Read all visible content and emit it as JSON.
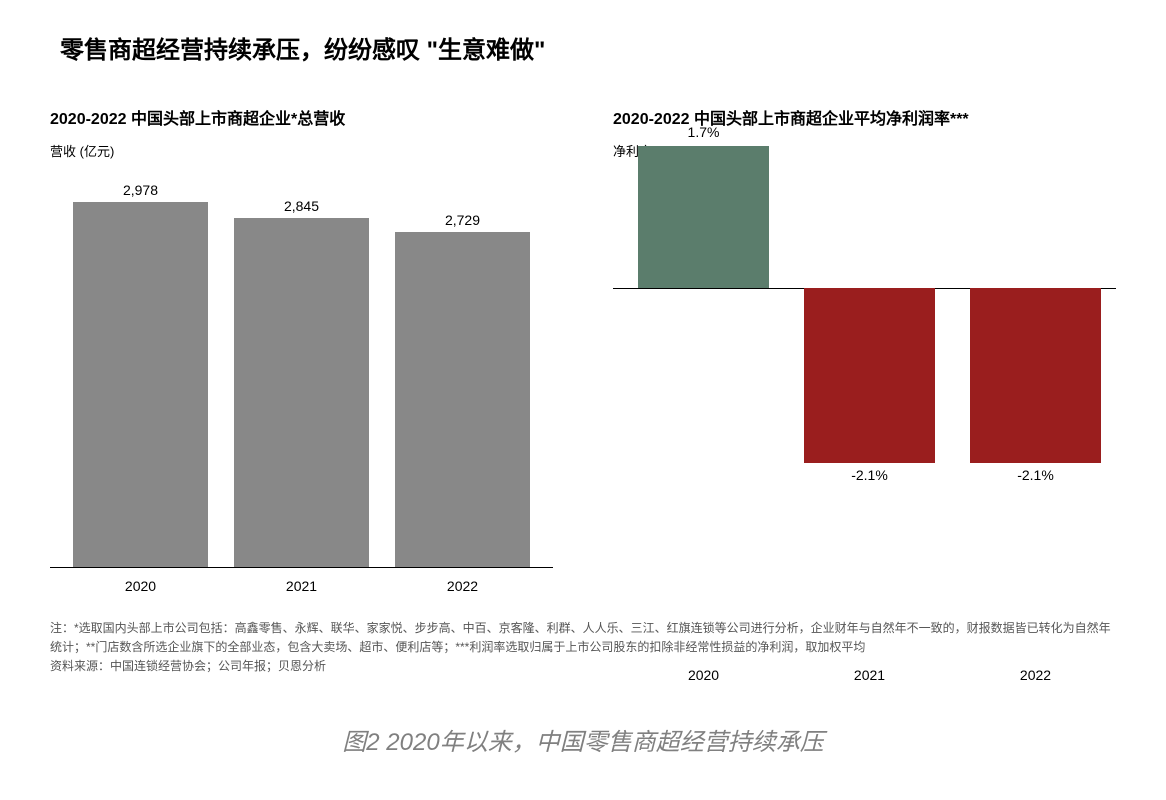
{
  "main_title": "零售商超经营持续承压，纷纷感叹 \"生意难做\"",
  "left_chart": {
    "type": "bar",
    "title": "2020-2022 中国头部上市商超企业*总营收",
    "ylabel": "营收 (亿元)",
    "categories": [
      "2020",
      "2021",
      "2022"
    ],
    "values": [
      2978,
      2845,
      2729
    ],
    "value_labels": [
      "2,978",
      "2,845",
      "2,729"
    ],
    "bar_color": "#888888",
    "ymax": 3100,
    "bar_width_pct": 28,
    "title_fontsize": 16,
    "label_fontsize": 14,
    "background_color": "#ffffff",
    "axis_color": "#000000"
  },
  "right_chart": {
    "type": "bar-diverging",
    "title": "2020-2022 中国头部上市商超企业平均净利润率***",
    "ylabel": "净利率 (%)",
    "categories": [
      "2020",
      "2021",
      "2022"
    ],
    "values": [
      1.7,
      -2.1,
      -2.1
    ],
    "value_labels": [
      "1.7%",
      "-2.1%",
      "-2.1%"
    ],
    "bar_colors": [
      "#5b7d6c",
      "#9a1e1e",
      "#9a1e1e"
    ],
    "ymax": 2.2,
    "ymin": -2.6,
    "zero_fraction_from_top": 0.3,
    "bar_width_pct": 26,
    "col_left_pct": [
      5,
      38,
      71
    ],
    "title_fontsize": 16,
    "label_fontsize": 14,
    "background_color": "#ffffff",
    "axis_color": "#000000"
  },
  "footnote": {
    "line1": "注：*选取国内头部上市公司包括：高鑫零售、永辉、联华、家家悦、步步高、中百、京客隆、利群、人人乐、三江、红旗连锁等公司进行分析，企业财年与自然年不一致的，财报数据皆已转化为自然年统计；**门店数含所选企业旗下的全部业态，包含大卖场、超市、便利店等；***利润率选取归属于上市公司股东的扣除非经常性损益的净利润，取加权平均",
    "line2": "资料来源：中国连锁经营协会；公司年报；贝恩分析"
  },
  "caption": "图2 2020年以来，中国零售商超经营持续承压"
}
